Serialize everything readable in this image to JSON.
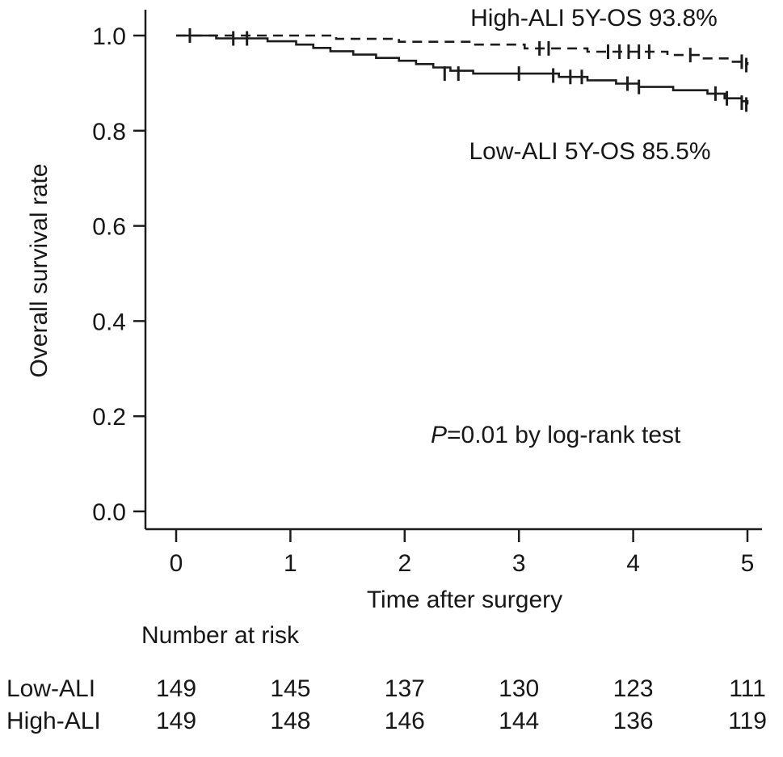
{
  "chart_data": {
    "type": "line",
    "subtype": "kaplan-meier-step",
    "title": "",
    "xlabel": "Time after surgery",
    "ylabel": "Overall survival rate",
    "xlim": [
      0,
      5
    ],
    "ylim": [
      0.0,
      1.0
    ],
    "xticks": [
      "0",
      "1",
      "2",
      "3",
      "4",
      "5"
    ],
    "yticks": [
      "1.0",
      "0.8",
      "0.6",
      "0.4",
      "0.2",
      "0.0"
    ],
    "grid": false,
    "legend_position": "inline-labels",
    "line_color": "#1c1c1c",
    "series": [
      {
        "name": "High-ALI",
        "style": "dashed",
        "label": "High-ALI 5Y-OS 93.8%",
        "five_year_os_percent": 93.8,
        "points": [
          [
            0,
            1.0
          ],
          [
            1.4,
            0.993
          ],
          [
            1.95,
            0.987
          ],
          [
            2.6,
            0.981
          ],
          [
            3.05,
            0.973
          ],
          [
            3.6,
            0.966
          ],
          [
            4.3,
            0.959
          ],
          [
            4.6,
            0.952
          ],
          [
            4.85,
            0.945
          ],
          [
            5,
            0.938
          ]
        ],
        "censor_marks": [
          [
            3.18,
            0.973
          ],
          [
            3.26,
            0.973
          ],
          [
            3.78,
            0.966
          ],
          [
            3.88,
            0.966
          ],
          [
            3.96,
            0.966
          ],
          [
            4.05,
            0.966
          ],
          [
            4.14,
            0.966
          ],
          [
            4.5,
            0.959
          ],
          [
            4.95,
            0.945
          ],
          [
            4.99,
            0.938
          ]
        ]
      },
      {
        "name": "Low-ALI",
        "style": "solid",
        "label": "Low-ALI 5Y-OS 85.5%",
        "five_year_os_percent": 85.5,
        "points": [
          [
            0,
            1.0
          ],
          [
            0.35,
            0.994
          ],
          [
            0.8,
            0.988
          ],
          [
            1.05,
            0.981
          ],
          [
            1.2,
            0.974
          ],
          [
            1.35,
            0.967
          ],
          [
            1.55,
            0.96
          ],
          [
            1.75,
            0.953
          ],
          [
            1.95,
            0.947
          ],
          [
            2.1,
            0.94
          ],
          [
            2.25,
            0.933
          ],
          [
            2.4,
            0.926
          ],
          [
            2.6,
            0.92
          ],
          [
            3.35,
            0.913
          ],
          [
            3.6,
            0.906
          ],
          [
            3.85,
            0.899
          ],
          [
            4.05,
            0.892
          ],
          [
            4.35,
            0.885
          ],
          [
            4.65,
            0.878
          ],
          [
            4.8,
            0.868
          ],
          [
            4.95,
            0.862
          ],
          [
            5,
            0.855
          ]
        ],
        "censor_marks": [
          [
            0.12,
            1.0
          ],
          [
            0.5,
            0.994
          ],
          [
            0.62,
            0.994
          ],
          [
            2.35,
            0.92
          ],
          [
            2.47,
            0.92
          ],
          [
            3.0,
            0.92
          ],
          [
            3.3,
            0.916
          ],
          [
            3.45,
            0.913
          ],
          [
            3.55,
            0.913
          ],
          [
            3.95,
            0.899
          ],
          [
            4.05,
            0.892
          ],
          [
            4.72,
            0.878
          ],
          [
            4.82,
            0.868
          ],
          [
            4.95,
            0.859
          ],
          [
            4.99,
            0.855
          ]
        ]
      }
    ],
    "annotation_p": "P",
    "annotation_rest": "=0.01 by log-rank test",
    "number_at_risk": {
      "title": "Number at risk",
      "times": [
        0,
        1,
        2,
        3,
        4,
        5
      ],
      "rows": [
        {
          "name": "Low-ALI",
          "values": [
            "149",
            "145",
            "137",
            "130",
            "123",
            "111"
          ]
        },
        {
          "name": "High-ALI",
          "values": [
            "149",
            "148",
            "146",
            "144",
            "136",
            "119"
          ]
        }
      ]
    }
  }
}
